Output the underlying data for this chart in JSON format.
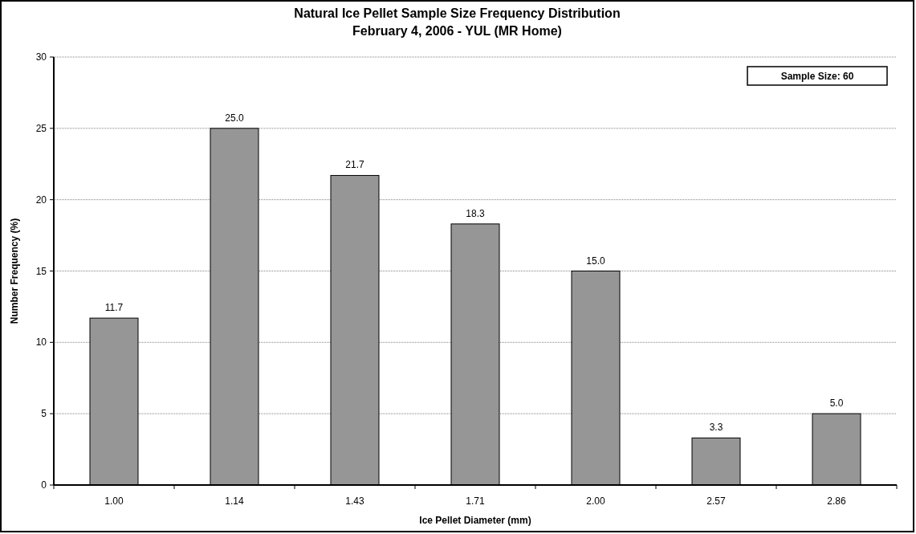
{
  "chart_data": {
    "type": "bar",
    "title": "Natural Ice Pellet Sample Size Frequency Distribution",
    "subtitle": "February 4, 2006 - YUL (MR Home)",
    "xlabel": "Ice Pellet Diameter (mm)",
    "ylabel": "Number Frequency (%)",
    "categories": [
      "1.00",
      "1.14",
      "1.43",
      "1.71",
      "2.00",
      "2.57",
      "2.86"
    ],
    "values": [
      11.7,
      25.0,
      21.7,
      18.3,
      15.0,
      3.3,
      5.0
    ],
    "color": "#969696",
    "ylim": [
      0,
      30
    ],
    "yticks": [
      0,
      5,
      10,
      15,
      20,
      25,
      30
    ],
    "grid": "y",
    "value_labels": [
      "11.7",
      "25.0",
      "21.7",
      "18.3",
      "15.0",
      "3.3",
      "5.0"
    ],
    "annotations": [
      "Sample Size: 60"
    ]
  }
}
